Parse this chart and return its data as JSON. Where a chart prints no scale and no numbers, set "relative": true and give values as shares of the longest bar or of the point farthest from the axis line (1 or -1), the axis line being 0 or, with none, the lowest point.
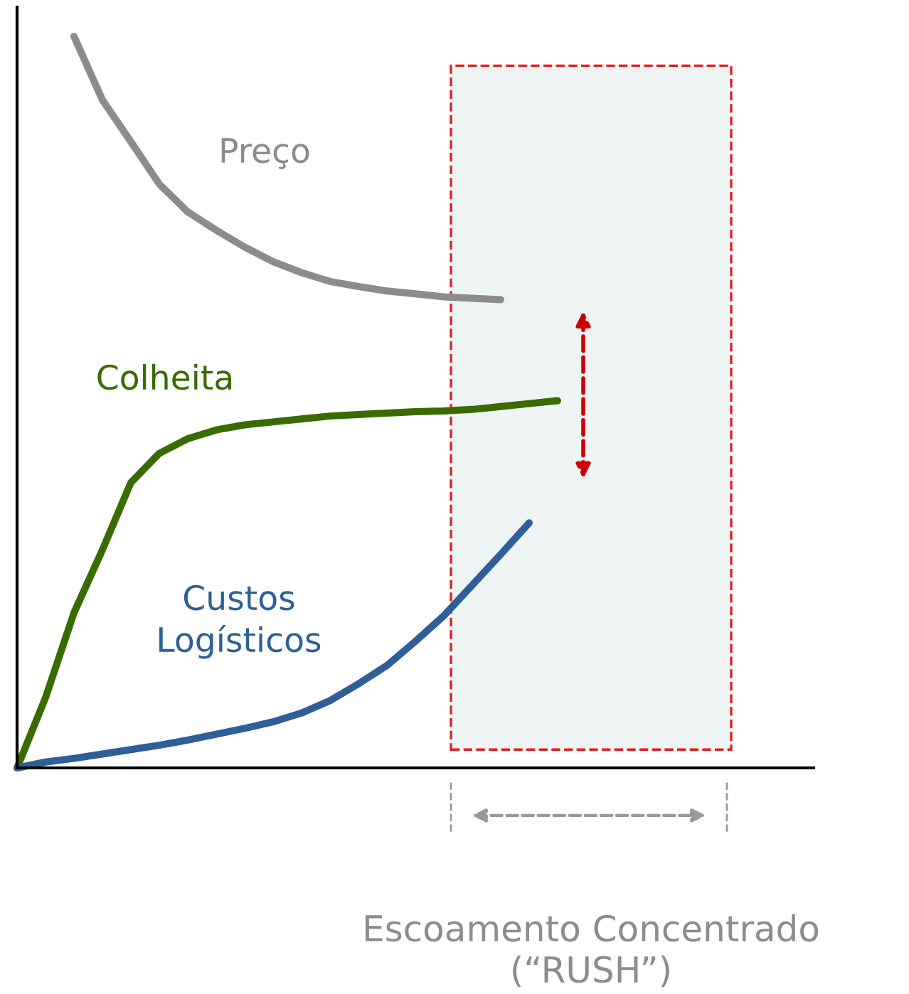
{
  "chart_data": {
    "type": "line",
    "relative": true,
    "categories": [
      null,
      null,
      null,
      null,
      null,
      null,
      null,
      null,
      null,
      null,
      null,
      null,
      null,
      null,
      null,
      null,
      null,
      null,
      null,
      null
    ],
    "series": [
      {
        "name": "Preço",
        "color": "#8c8c8c",
        "values": [
          null,
          null,
          1.0,
          0.913,
          0.856,
          0.798,
          0.76,
          0.735,
          0.712,
          0.692,
          0.677,
          0.665,
          0.658,
          0.652,
          0.648,
          0.644,
          0.642,
          0.64,
          null,
          null
        ]
      },
      {
        "name": "Colheita",
        "color": "#3a6b00",
        "values": [
          0,
          0.096,
          0.212,
          0.298,
          0.39,
          0.43,
          0.45,
          0.462,
          0.469,
          0.473,
          0.477,
          0.481,
          0.483,
          0.485,
          0.487,
          0.488,
          0.49,
          0.494,
          0.498,
          0.502
        ]
      },
      {
        "name": "Custos\nLogísticos",
        "color": "#2e5f96",
        "values": [
          0,
          0.008,
          0.013,
          0.019,
          0.025,
          0.031,
          0.038,
          0.046,
          0.054,
          0.063,
          0.075,
          0.092,
          0.115,
          0.14,
          0.173,
          0.208,
          0.25,
          0.292,
          0.335,
          null
        ]
      }
    ],
    "annotations": [
      "Escoamento Concentrado\n(“RUSH”)"
    ],
    "tick_labels": false,
    "marker": "none",
    "line_style": "solid"
  }
}
